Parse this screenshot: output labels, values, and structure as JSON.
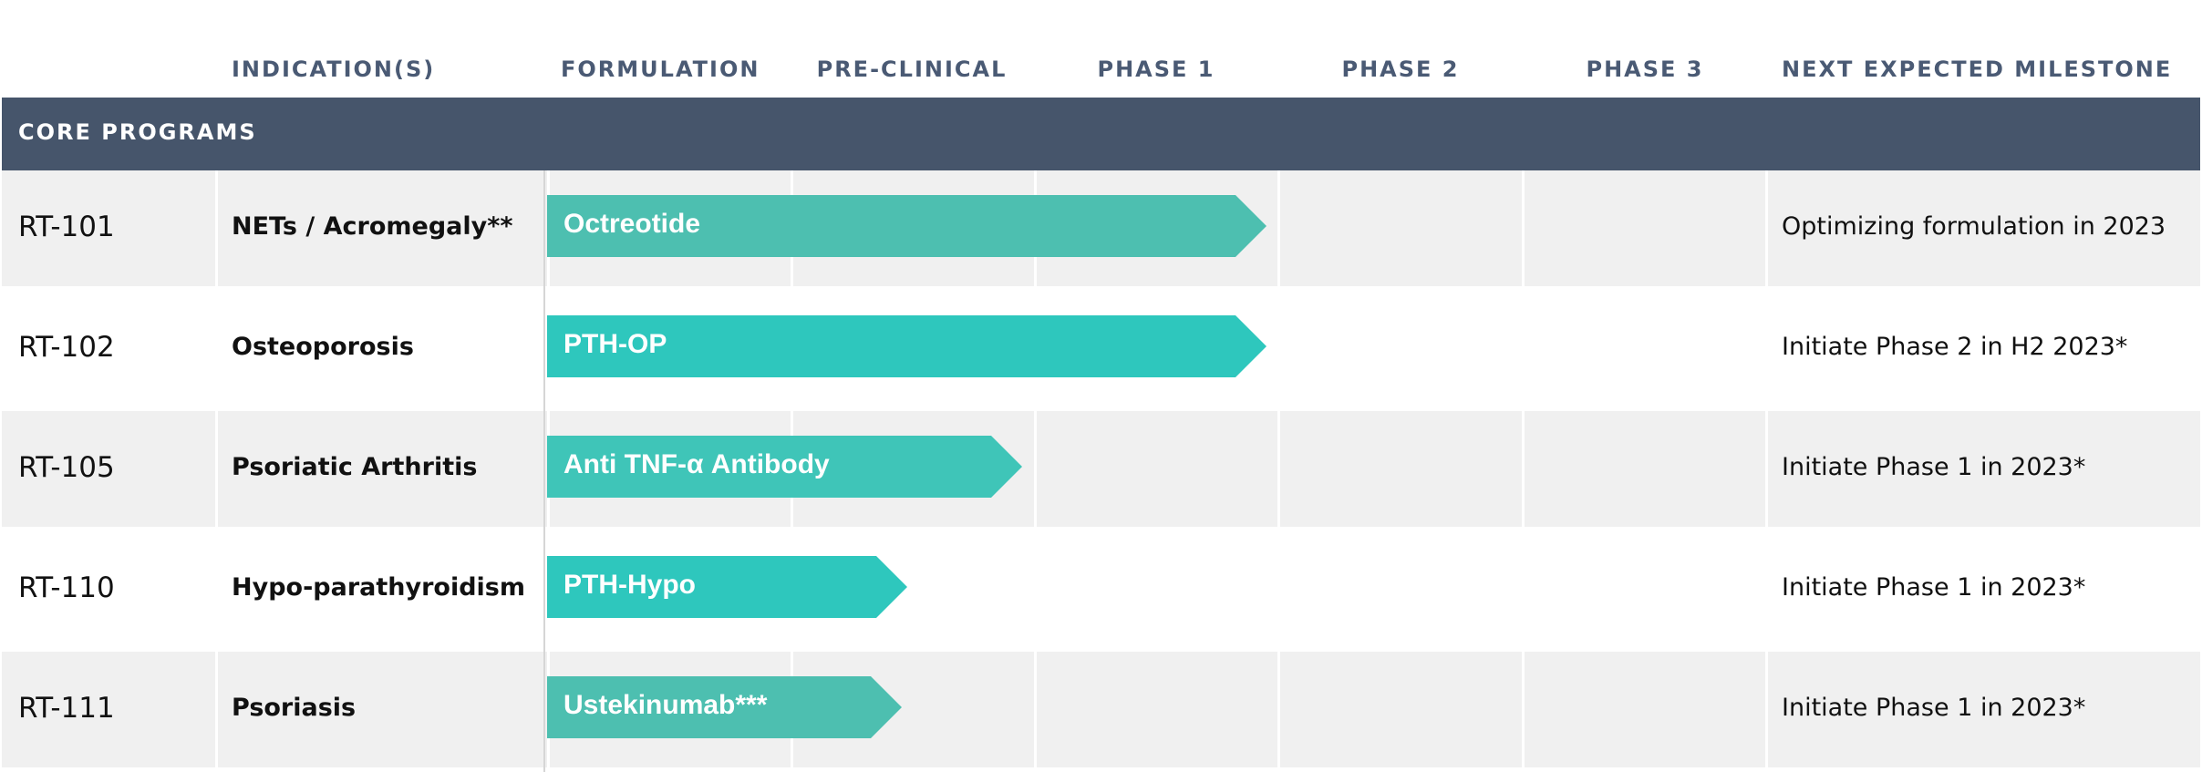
{
  "headers": {
    "indication": "INDICATION(S)",
    "formulation": "FORMULATION",
    "preclinical": "PRE-CLINICAL",
    "phase1": "PHASE 1",
    "phase2": "PHASE 2",
    "phase3": "PHASE 3",
    "milestone": "NEXT EXPECTED MILESTONE"
  },
  "section": {
    "label": "CORE PROGRAMS",
    "color": "#46556b"
  },
  "colors": {
    "row_shade": "#f0f0f0",
    "arrow_teal_dark": "#4dbfb0",
    "arrow_teal": "#2ec7bd",
    "arrow_teal_light": "#3fc5b8"
  },
  "stages": [
    "FORMULATION",
    "PRE-CLINICAL",
    "PHASE 1",
    "PHASE 2",
    "PHASE 3"
  ],
  "rows": [
    {
      "program": "RT-101",
      "indication": "NETs / Acromegaly**",
      "asset": "Octreotide",
      "progress_stages": 2.95,
      "color": "#4dbfb0",
      "milestone": "Optimizing formulation in 2023"
    },
    {
      "program": "RT-102",
      "indication": "Osteoporosis",
      "asset": "PTH-OP",
      "progress_stages": 2.95,
      "color": "#2ec7bd",
      "milestone": "Initiate Phase 2 in H2 2023*"
    },
    {
      "program": "RT-105",
      "indication": "Psoriatic Arthritis",
      "asset": "Anti TNF-α Antibody",
      "progress_stages": 1.95,
      "color": "#3fc5b8",
      "milestone": "Initiate Phase 1 in 2023*"
    },
    {
      "program": "RT-110",
      "indication": "Hypo-parathyroidism",
      "asset": "PTH-Hypo",
      "progress_stages": 1.48,
      "color": "#2ec7bd",
      "milestone": "Initiate Phase 1 in 2023*"
    },
    {
      "program": "RT-111",
      "indication": "Psoriasis",
      "asset": "Ustekinumab***",
      "progress_stages": 1.46,
      "color": "#4dbfb0",
      "milestone": "Initiate Phase 1 in 2023*"
    }
  ]
}
